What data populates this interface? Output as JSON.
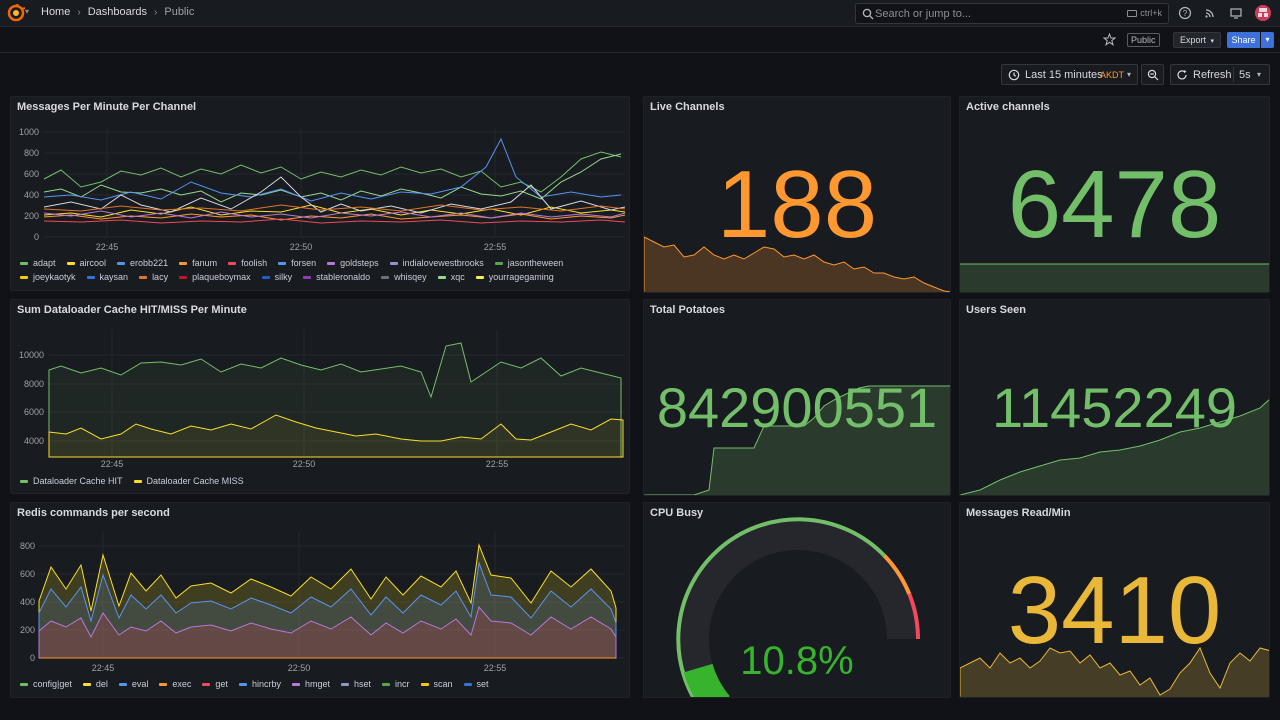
{
  "nav": {
    "breadcrumbs": [
      "Home",
      "Dashboards",
      "Public"
    ],
    "search_placeholder": "Search or jump to...",
    "search_shortcut": "ctrl+k"
  },
  "toolbar": {
    "public_tag": "Public",
    "export_label": "Export",
    "share_label": "Share"
  },
  "time": {
    "range_label": "Last 15 minutes",
    "timezone": "AKDT",
    "refresh_label": "Refresh",
    "interval": "5s"
  },
  "colors": {
    "green": "#73bf69",
    "orange": "#ff9830",
    "yellow": "#fade2a",
    "gold": "#f2c94c",
    "red": "#f2495c",
    "blue": "#5794f2",
    "purple": "#b877d9"
  },
  "panels": {
    "messages": {
      "title": "Messages Per Minute Per Channel",
      "legend": [
        "adapt",
        "aircool",
        "erobb221",
        "fanum",
        "foolish",
        "forsen",
        "goldsteps",
        "indialovewestbrooks",
        "jasontheween",
        "joeykaotyk",
        "kaysan",
        "lacy",
        "plaqueboymax",
        "silky",
        "stableronaldo",
        "whisqey",
        "xqc",
        "yourragegaming"
      ],
      "legend_colors": [
        "#73bf69",
        "#fade2a",
        "#5794f2",
        "#ff9830",
        "#f2495c",
        "#5794f2",
        "#b877d9",
        "#8f97c7",
        "#56a64b",
        "#f2cc0c",
        "#3274d9",
        "#e0752d",
        "#c4162a",
        "#1f60c4",
        "#8f3bb8",
        "#6e6e7a",
        "#96d98d",
        "#ffee52"
      ],
      "y_ticks": [
        "1000",
        "800",
        "600",
        "400",
        "200",
        "0"
      ],
      "x_ticks": [
        "22:45",
        "22:50",
        "22:55"
      ]
    },
    "live_channels": {
      "title": "Live Channels",
      "value": "188"
    },
    "active_channels": {
      "title": "Active channels",
      "value": "6478"
    },
    "cache": {
      "title": "Sum Dataloader Cache HIT/MISS Per Minute",
      "legend": [
        "Dataloader Cache HIT",
        "Dataloader Cache MISS"
      ],
      "legend_colors": [
        "#73bf69",
        "#fade2a"
      ],
      "y_ticks": [
        "10000",
        "8000",
        "6000",
        "4000"
      ],
      "x_ticks": [
        "22:45",
        "22:50",
        "22:55"
      ]
    },
    "potatoes": {
      "title": "Total Potatoes",
      "value": "842900551"
    },
    "users_seen": {
      "title": "Users Seen",
      "value": "11452249"
    },
    "redis": {
      "title": "Redis commands per second",
      "legend": [
        "config|get",
        "del",
        "eval",
        "exec",
        "get",
        "hincrby",
        "hmget",
        "hset",
        "incr",
        "scan",
        "set"
      ],
      "legend_colors": [
        "#73bf69",
        "#fade2a",
        "#5794f2",
        "#ff9830",
        "#f2495c",
        "#5794f2",
        "#b877d9",
        "#8f97c7",
        "#56a64b",
        "#f2cc0c",
        "#3274d9"
      ],
      "y_ticks": [
        "800",
        "600",
        "400",
        "200",
        "0"
      ],
      "x_ticks": [
        "22:45",
        "22:50",
        "22:55"
      ]
    },
    "cpu": {
      "title": "CPU Busy",
      "value": "10.8%",
      "fraction": 0.108
    },
    "messages_read": {
      "title": "Messages Read/Min",
      "value": "3410"
    }
  }
}
